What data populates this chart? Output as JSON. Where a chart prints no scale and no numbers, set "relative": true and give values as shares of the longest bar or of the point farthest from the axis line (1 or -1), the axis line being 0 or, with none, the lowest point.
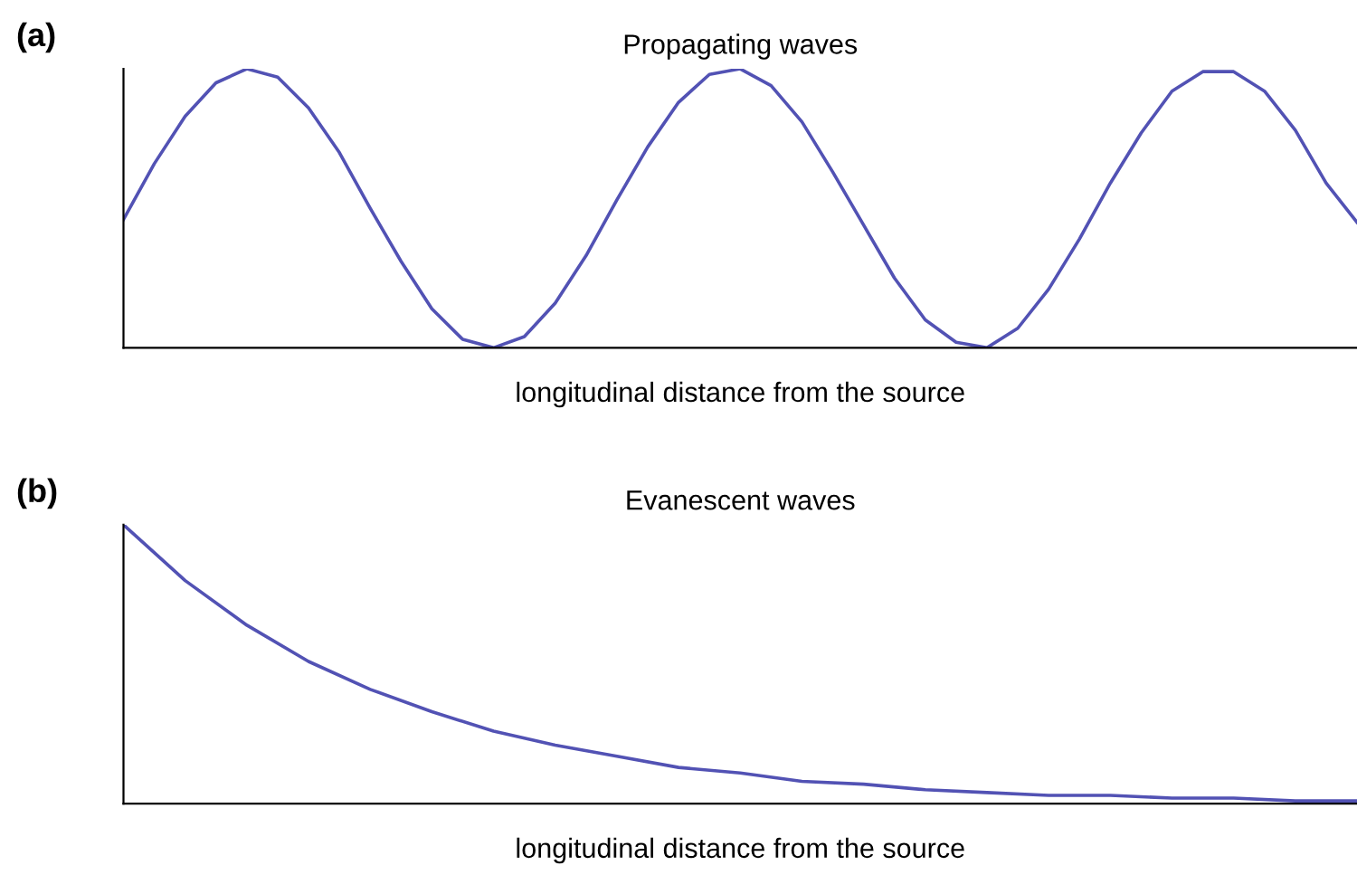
{
  "chart_data": [
    {
      "type": "line",
      "title": "Propagating waves",
      "xlabel": "longitudinal distance from the source",
      "annotations": [
        "(a)"
      ],
      "relative": true,
      "grid": false,
      "legend": false,
      "marker": "none",
      "line_style": "solid",
      "categories": [
        null,
        null,
        null,
        null,
        null,
        null,
        null,
        null,
        null,
        null,
        null,
        null,
        null,
        null,
        null,
        null,
        null,
        null,
        null,
        null,
        null,
        null,
        null,
        null,
        null,
        null,
        null,
        null,
        null,
        null,
        null,
        null,
        null,
        null,
        null,
        null,
        null,
        null,
        null,
        null,
        null
      ],
      "series": [
        {
          "color": "#5252b4",
          "values": [
            0.46,
            0.66,
            0.83,
            0.95,
            1.0,
            0.97,
            0.86,
            0.7,
            0.5,
            0.31,
            0.14,
            0.03,
            0,
            0.04,
            0.16,
            0.33,
            0.53,
            0.72,
            0.88,
            0.98,
            1.0,
            0.94,
            0.81,
            0.63,
            0.44,
            0.25,
            0.1,
            0.02,
            0,
            0.07,
            0.21,
            0.39,
            0.59,
            0.77,
            0.92,
            0.99,
            0.99,
            0.92,
            0.78,
            0.59,
            0.45
          ]
        }
      ]
    },
    {
      "type": "line",
      "title": "Evanescent waves",
      "xlabel": "longitudinal distance from the source",
      "annotations": [
        "(b)"
      ],
      "relative": true,
      "grid": false,
      "legend": false,
      "marker": "none",
      "line_style": "solid",
      "categories": [
        null,
        null,
        null,
        null,
        null,
        null,
        null,
        null,
        null,
        null,
        null,
        null,
        null,
        null,
        null,
        null,
        null,
        null,
        null,
        null,
        null
      ],
      "series": [
        {
          "color": "#5252b4",
          "values": [
            1,
            0.8,
            0.64,
            0.51,
            0.41,
            0.33,
            0.26,
            0.21,
            0.17,
            0.13,
            0.11,
            0.08,
            0.07,
            0.05,
            0.04,
            0.03,
            0.03,
            0.02,
            0.02,
            0.01,
            0.01
          ]
        }
      ]
    }
  ]
}
